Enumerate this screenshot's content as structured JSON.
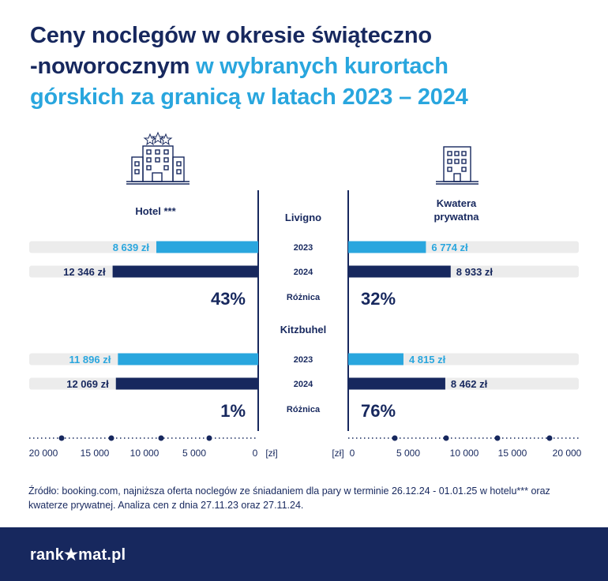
{
  "title": {
    "line1_dark": "Ceny noclegów w okresie świąteczno",
    "line2_dark": "-noworocznym",
    "line2_light": "w wybranych kurortach",
    "line3_light": "górskich za granicą w latach 2023 – 2024"
  },
  "colors": {
    "navy": "#17285e",
    "blue": "#29a6de",
    "track": "#ececec"
  },
  "icons": {
    "left": "hotel-building-icon",
    "right": "apartment-building-icon"
  },
  "chart_data": {
    "type": "bar",
    "orientation": "horizontal-butterfly",
    "left_header": "Hotel ***",
    "right_header": "Kwatera prywatna",
    "groups": [
      {
        "name": "Livigno",
        "years": [
          "2023",
          "2024"
        ],
        "hotel_labels": [
          "8 639 zł",
          "12 346 zł"
        ],
        "hotel_values": [
          8639,
          12346
        ],
        "kwatera_labels": [
          "6 774 zł",
          "8 933 zł"
        ],
        "kwatera_values": [
          6774,
          8933
        ],
        "diff_label": "Różnica",
        "hotel_diff": "43%",
        "kwatera_diff": "32%"
      },
      {
        "name": "Kitzbuhel",
        "years": [
          "2023",
          "2024"
        ],
        "hotel_labels": [
          "11 896 zł",
          "12 069 zł"
        ],
        "hotel_values": [
          11896,
          12069
        ],
        "kwatera_labels": [
          "4 815 zł",
          "8 462 zł"
        ],
        "kwatera_values": [
          4815,
          8462
        ],
        "diff_label": "Różnica",
        "hotel_diff": "1%",
        "kwatera_diff": "76%"
      }
    ],
    "axis_left_ticks": [
      "20 000",
      "15 000",
      "10 000",
      "5 000",
      "0"
    ],
    "axis_right_ticks": [
      "0",
      "5 000",
      "10 000",
      "15 000",
      "20 000"
    ],
    "axis_left_unit": "[zł]",
    "axis_right_unit": "[zł]",
    "xlim": [
      0,
      20000
    ]
  },
  "source_text": "Źródło: booking.com, najniższa oferta noclegów ze śniadaniem dla pary w terminie 26.12.24 - 01.01.25 w hotelu*** oraz kwaterze prywatnej. Analiza cen z dnia 27.11.23 oraz 27.11.24.",
  "footer": {
    "logo": "rank★mat.pl"
  }
}
